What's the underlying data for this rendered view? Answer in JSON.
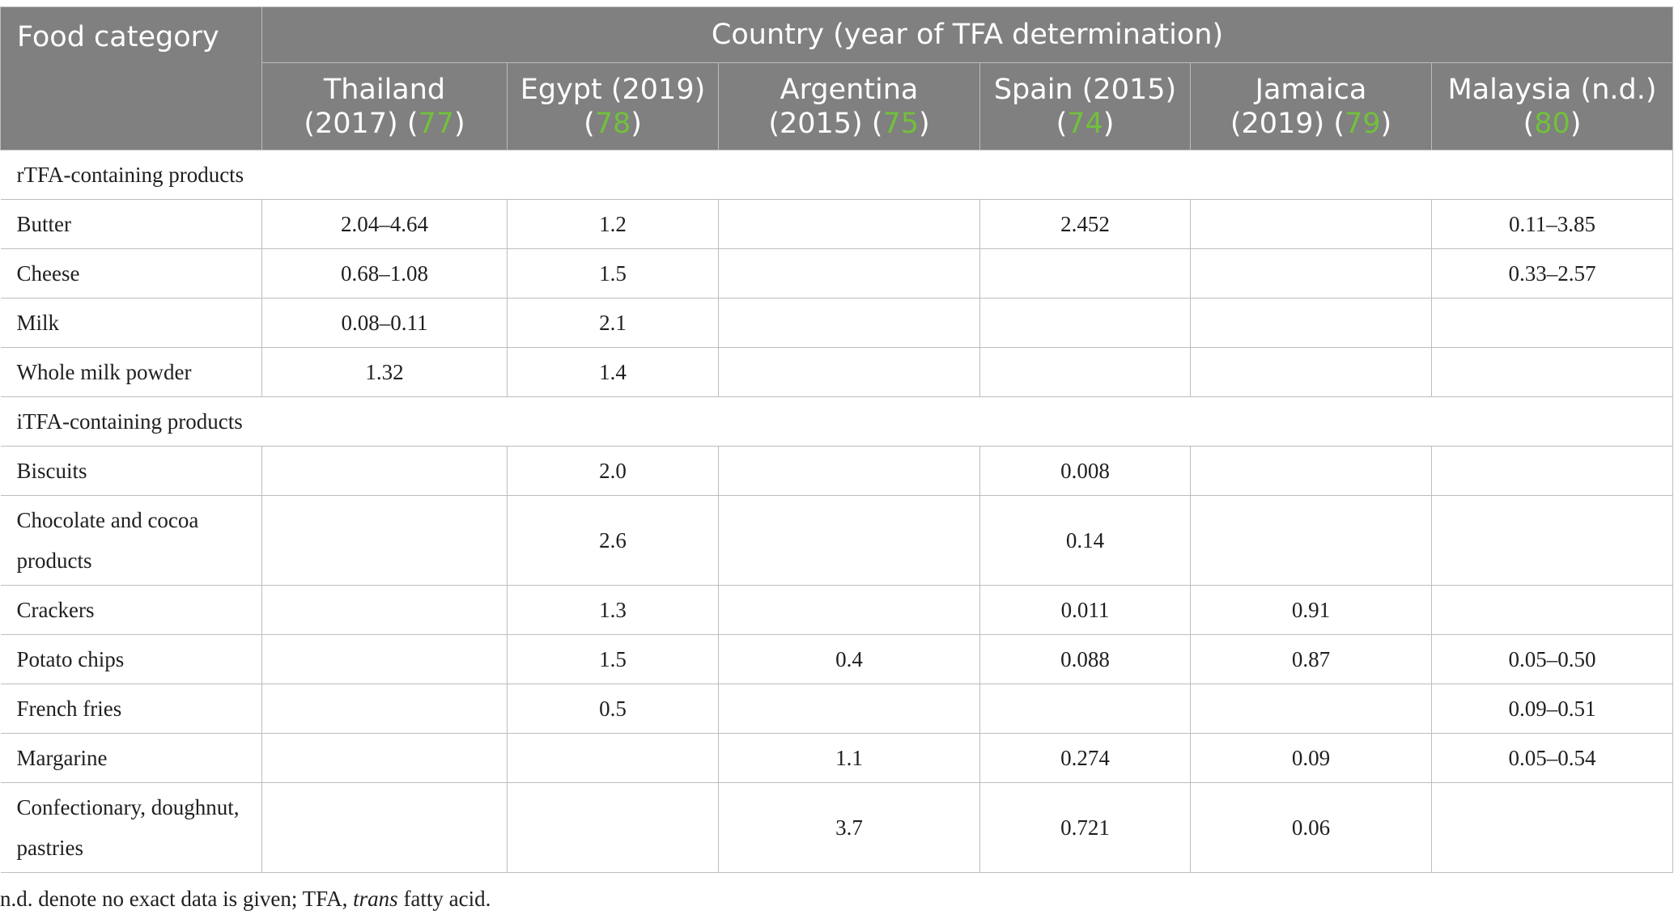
{
  "header": {
    "food_category": "Food category",
    "country_group": "Country (year of TFA determination)",
    "countries": [
      {
        "name": "Thailand",
        "year": "(2017)",
        "ref": "77"
      },
      {
        "name": "Egypt",
        "year": "(2019)",
        "ref": "78"
      },
      {
        "name": "Argentina",
        "year": "(2015)",
        "ref": "75"
      },
      {
        "name": "Spain",
        "year": "(2015)",
        "ref": "74"
      },
      {
        "name": "Jamaica",
        "year": "(2019)",
        "ref": "79"
      },
      {
        "name": "Malaysia",
        "year": "(n.d.)",
        "ref": "80"
      }
    ]
  },
  "sections": [
    {
      "title": "rTFA-containing products",
      "rows": [
        {
          "category": "Butter",
          "values": [
            "2.04–4.64",
            "1.2",
            "",
            "2.452",
            "",
            "0.11–3.85"
          ]
        },
        {
          "category": "Cheese",
          "values": [
            "0.68–1.08",
            "1.5",
            "",
            "",
            "",
            "0.33–2.57"
          ]
        },
        {
          "category": "Milk",
          "values": [
            "0.08–0.11",
            "2.1",
            "",
            "",
            "",
            ""
          ]
        },
        {
          "category": "Whole milk powder",
          "values": [
            "1.32",
            "1.4",
            "",
            "",
            "",
            ""
          ]
        }
      ]
    },
    {
      "title": "iTFA-containing products",
      "rows": [
        {
          "category": "Biscuits",
          "values": [
            "",
            "2.0",
            "",
            "0.008",
            "",
            ""
          ]
        },
        {
          "category": "Chocolate and cocoa products",
          "values": [
            "",
            "2.6",
            "",
            "0.14",
            "",
            ""
          ]
        },
        {
          "category": "Crackers",
          "values": [
            "",
            "1.3",
            "",
            "0.011",
            "0.91",
            ""
          ]
        },
        {
          "category": "Potato chips",
          "values": [
            "",
            "1.5",
            "0.4",
            "0.088",
            "0.87",
            "0.05–0.50"
          ]
        },
        {
          "category": "French fries",
          "values": [
            "",
            "0.5",
            "",
            "",
            "",
            "0.09–0.51"
          ]
        },
        {
          "category": "Margarine",
          "values": [
            "",
            "",
            "1.1",
            "0.274",
            "0.09",
            "0.05–0.54"
          ]
        },
        {
          "category": "Confectionary, doughnut, pastries",
          "values": [
            "",
            "",
            "3.7",
            "0.721",
            "0.06",
            ""
          ]
        }
      ]
    }
  ],
  "footnote": {
    "before": "n.d. denote no exact data is given; TFA, ",
    "italic": "trans",
    "after": " fatty acid."
  }
}
